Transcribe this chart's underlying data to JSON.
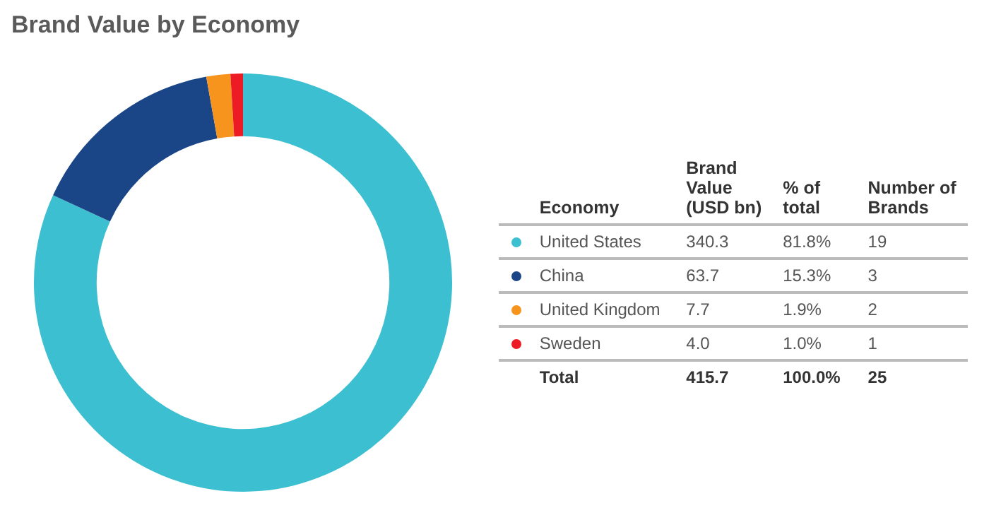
{
  "chart_data": {
    "type": "donut",
    "title": "Brand Value by Economy",
    "legend_title": "Economy",
    "legend": "right",
    "categories": [
      "United States",
      "China",
      "United Kingdom",
      "Sweden"
    ],
    "colors": [
      "#3bbfd1",
      "#1a4687",
      "#f7941d",
      "#ed1c24"
    ],
    "series": [
      {
        "name": "Brand Value (USD bn)",
        "values": [
          340.3,
          63.7,
          7.7,
          4.0
        ],
        "value_labels": [
          "340.3",
          "63.7",
          "7.7",
          "4.0"
        ]
      }
    ],
    "annotations": [
      "% of total",
      "81.8%",
      "15.3%",
      "1.9%",
      "1.0%",
      "Number of Brands",
      "19",
      "3",
      "2",
      "1"
    ],
    "totals": [
      "Total",
      "415.7",
      "100.0%",
      "25"
    ]
  }
}
